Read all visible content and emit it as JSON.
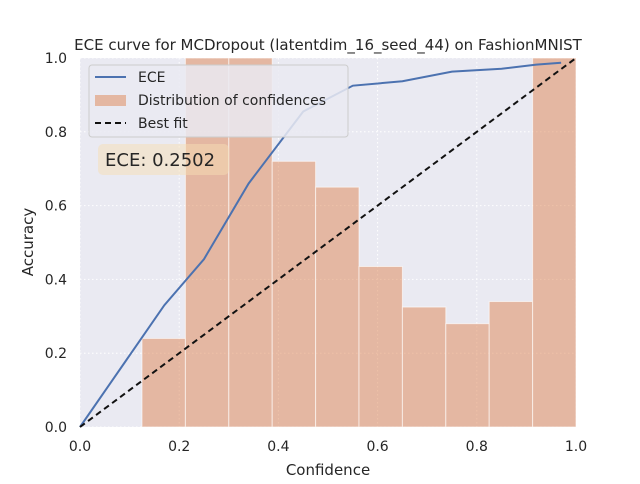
{
  "chart_data": {
    "type": "bar",
    "title": "ECE curve for MCDropout (latentdim_16_seed_44) on FashionMNIST",
    "xlabel": "Confidence",
    "ylabel": "Accuracy",
    "xlim": [
      0.0,
      1.0
    ],
    "ylim": [
      0.0,
      1.0
    ],
    "xticks": [
      "0.0",
      "0.2",
      "0.4",
      "0.6",
      "0.8",
      "1.0"
    ],
    "yticks": [
      "0.0",
      "0.2",
      "0.4",
      "0.6",
      "0.8",
      "1.0"
    ],
    "grid": true,
    "legend_position": "top-left",
    "ece_annotation": "ECE: 0.2502",
    "series": [
      {
        "name": "Distribution of confidences",
        "kind": "histogram",
        "color": "#dd8452",
        "bins": [
          {
            "x0": 0.125,
            "x1": 0.2125,
            "value": 0.24
          },
          {
            "x0": 0.2125,
            "x1": 0.3,
            "value": 1.0
          },
          {
            "x0": 0.3,
            "x1": 0.3875,
            "value": 1.0
          },
          {
            "x0": 0.3875,
            "x1": 0.475,
            "value": 0.72
          },
          {
            "x0": 0.475,
            "x1": 0.5625,
            "value": 0.65
          },
          {
            "x0": 0.5625,
            "x1": 0.65,
            "value": 0.435
          },
          {
            "x0": 0.65,
            "x1": 0.7375,
            "value": 0.325
          },
          {
            "x0": 0.7375,
            "x1": 0.825,
            "value": 0.28
          },
          {
            "x0": 0.825,
            "x1": 0.9125,
            "value": 0.34
          },
          {
            "x0": 0.9125,
            "x1": 1.0,
            "value": 1.0
          }
        ]
      },
      {
        "name": "ECE",
        "kind": "line",
        "color": "#4c72b0",
        "x": [
          0.0,
          0.17,
          0.25,
          0.34,
          0.45,
          0.55,
          0.65,
          0.75,
          0.85,
          0.92,
          0.97
        ],
        "y": [
          0.0,
          0.33,
          0.455,
          0.66,
          0.855,
          0.925,
          0.937,
          0.963,
          0.971,
          0.982,
          0.987
        ]
      },
      {
        "name": "Best fit",
        "kind": "line",
        "style": "dashed",
        "color": "#111111",
        "x": [
          0.0,
          1.0
        ],
        "y": [
          0.0,
          1.0
        ]
      }
    ]
  }
}
